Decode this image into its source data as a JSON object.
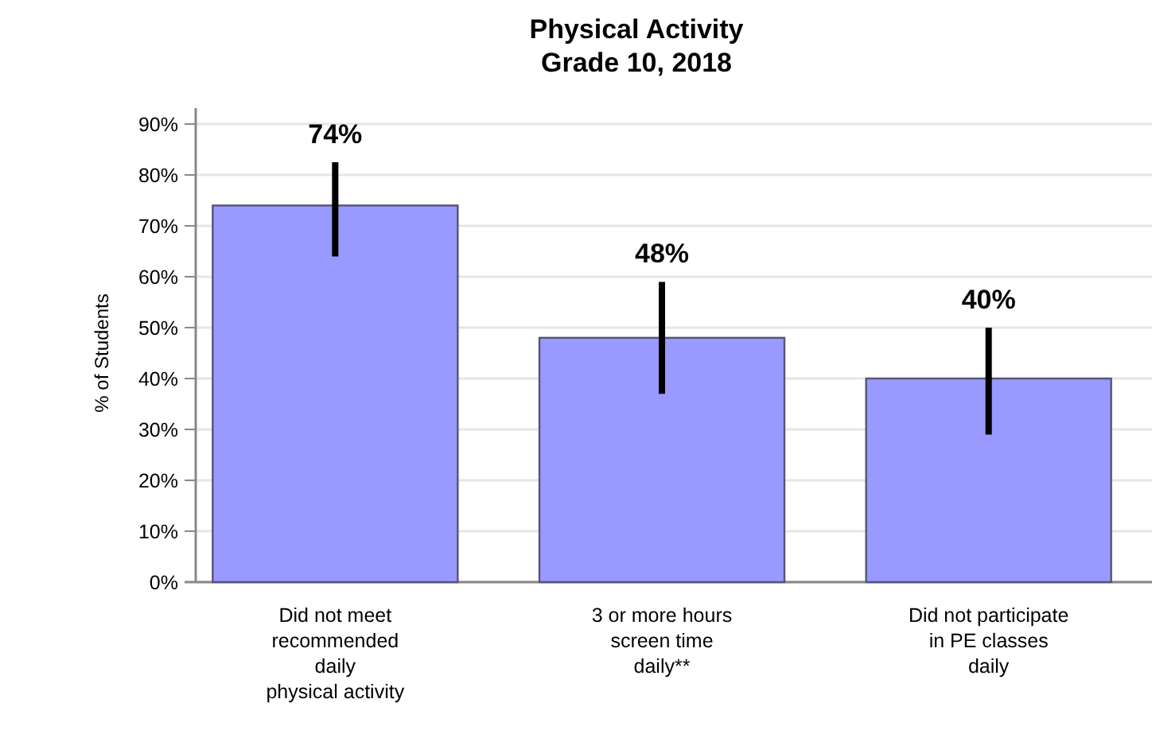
{
  "chart_data": {
    "type": "bar",
    "title": "Physical Activity\nGrade 10, 2018",
    "ylabel": "% of Students",
    "categories": [
      "Did not meet\nrecommended\ndaily\nphysical activity",
      "3 or more hours\nscreen time\ndaily**",
      "Did not participate\nin PE classes\ndaily"
    ],
    "values": [
      74,
      48,
      40
    ],
    "color": "#9999ff",
    "errors": [
      [
        64,
        82.5
      ],
      [
        37,
        59
      ],
      [
        29,
        50
      ]
    ],
    "value_labels": [
      "74%",
      "48%",
      "40%"
    ],
    "ylim": [
      0,
      90
    ],
    "yticks": [
      {
        "value": 0,
        "label": "0%"
      },
      {
        "value": 10,
        "label": "10%"
      },
      {
        "value": 20,
        "label": "20%"
      },
      {
        "value": 30,
        "label": "30%"
      },
      {
        "value": 40,
        "label": "40%"
      },
      {
        "value": 50,
        "label": "50%"
      },
      {
        "value": 60,
        "label": "60%"
      },
      {
        "value": 70,
        "label": "70%"
      },
      {
        "value": 80,
        "label": "80%"
      },
      {
        "value": 90,
        "label": "90%"
      }
    ],
    "grid": "y"
  }
}
